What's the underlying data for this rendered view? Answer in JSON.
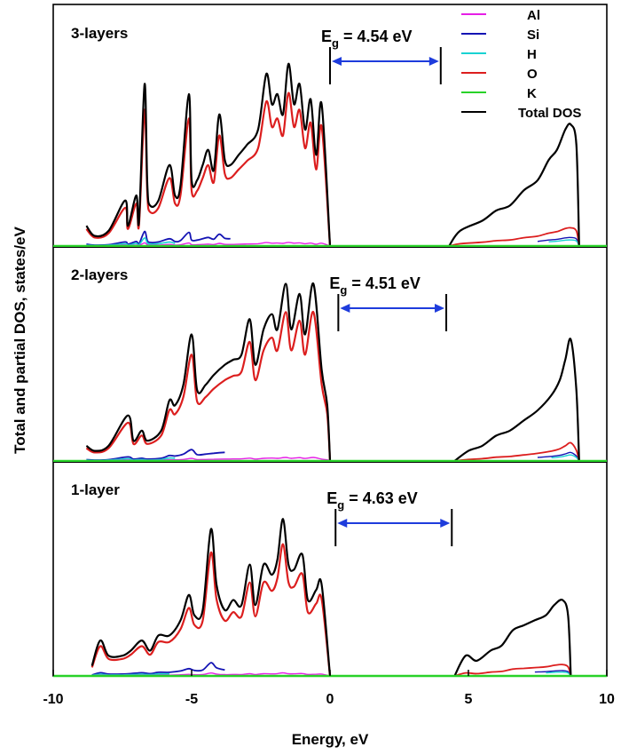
{
  "figure": {
    "ylabel": "Total and partial DOS, states/eV",
    "xlabel": "Energy, eV"
  },
  "legend": {
    "entries": [
      {
        "label": "Al",
        "color": "#e61ee6"
      },
      {
        "label": "Si",
        "color": "#1414b4"
      },
      {
        "label": "H",
        "color": "#19d2d2"
      },
      {
        "label": "O",
        "color": "#dc1e1e"
      },
      {
        "label": "K",
        "color": "#28d228"
      },
      {
        "label": "Total DOS",
        "color": "#000000"
      }
    ]
  },
  "chart_data": {
    "type": "line",
    "xlabel": "Energy, eV",
    "ylabel": "Total and partial DOS, states/eV",
    "xlim": [
      -10,
      10
    ],
    "xticks": [
      "-10",
      "-5",
      "0",
      "5",
      "10"
    ],
    "series_names": [
      "Al",
      "Si",
      "H",
      "O",
      "K",
      "Total DOS"
    ],
    "panels": [
      {
        "label": "3-layers",
        "band_gap": {
          "text_main": "E",
          "text_sub": "g",
          "text_rest": " = 4.54 eV",
          "from": 0.0,
          "to": 4.0
        },
        "valence": [
          [
            -8.8,
            0.4
          ],
          [
            -8.5,
            0.2
          ],
          [
            -8.0,
            0.3
          ],
          [
            -7.4,
            0.9
          ],
          [
            -7.3,
            0.4
          ],
          [
            -7.0,
            1.0
          ],
          [
            -6.9,
            0.5
          ],
          [
            -6.7,
            3.2
          ],
          [
            -6.6,
            1.2
          ],
          [
            -6.5,
            0.8
          ],
          [
            -6.2,
            0.9
          ],
          [
            -5.8,
            1.6
          ],
          [
            -5.6,
            1.0
          ],
          [
            -5.4,
            1.2
          ],
          [
            -5.1,
            3.0
          ],
          [
            -5.0,
            1.3
          ],
          [
            -4.8,
            1.3
          ],
          [
            -4.6,
            1.6
          ],
          [
            -4.4,
            1.9
          ],
          [
            -4.2,
            1.5
          ],
          [
            -4.0,
            2.6
          ],
          [
            -3.8,
            1.7
          ],
          [
            -3.6,
            1.6
          ],
          [
            -3.3,
            1.8
          ],
          [
            -3.0,
            2.0
          ],
          [
            -2.6,
            2.3
          ],
          [
            -2.3,
            3.4
          ],
          [
            -2.1,
            2.8
          ],
          [
            -1.9,
            3.0
          ],
          [
            -1.7,
            2.6
          ],
          [
            -1.5,
            3.6
          ],
          [
            -1.3,
            2.8
          ],
          [
            -1.1,
            3.2
          ],
          [
            -0.9,
            2.3
          ],
          [
            -0.7,
            2.9
          ],
          [
            -0.5,
            1.8
          ],
          [
            -0.3,
            2.8
          ],
          [
            0.0,
            0.0
          ]
        ],
        "conduction": [
          [
            4.3,
            0.0
          ],
          [
            4.7,
            0.3
          ],
          [
            5.5,
            0.5
          ],
          [
            6.0,
            0.7
          ],
          [
            6.5,
            0.8
          ],
          [
            7.0,
            1.1
          ],
          [
            7.5,
            1.3
          ],
          [
            7.9,
            1.7
          ],
          [
            8.2,
            1.9
          ],
          [
            8.5,
            2.3
          ],
          [
            8.7,
            2.4
          ],
          [
            8.9,
            2.0
          ],
          [
            9.0,
            0.0
          ]
        ]
      },
      {
        "label": "2-layers",
        "band_gap": {
          "text_main": "E",
          "text_sub": "g",
          "text_rest": " = 4.51 eV",
          "from": 0.3,
          "to": 4.2
        },
        "valence": [
          [
            -8.8,
            0.3
          ],
          [
            -8.5,
            0.2
          ],
          [
            -8.0,
            0.3
          ],
          [
            -7.3,
            0.9
          ],
          [
            -7.1,
            0.4
          ],
          [
            -6.8,
            0.6
          ],
          [
            -6.6,
            0.4
          ],
          [
            -6.1,
            0.6
          ],
          [
            -5.8,
            1.2
          ],
          [
            -5.6,
            1.1
          ],
          [
            -5.3,
            1.5
          ],
          [
            -5.0,
            2.5
          ],
          [
            -4.8,
            1.4
          ],
          [
            -4.5,
            1.5
          ],
          [
            -4.2,
            1.7
          ],
          [
            -3.8,
            1.9
          ],
          [
            -3.5,
            2.0
          ],
          [
            -3.2,
            2.1
          ],
          [
            -2.9,
            2.8
          ],
          [
            -2.7,
            1.9
          ],
          [
            -2.4,
            2.6
          ],
          [
            -2.1,
            2.9
          ],
          [
            -1.9,
            2.6
          ],
          [
            -1.6,
            3.5
          ],
          [
            -1.4,
            2.6
          ],
          [
            -1.1,
            3.3
          ],
          [
            -0.9,
            2.5
          ],
          [
            -0.6,
            3.5
          ],
          [
            -0.3,
            1.8
          ],
          [
            -0.1,
            1.1
          ],
          [
            0.0,
            0.0
          ]
        ],
        "conduction": [
          [
            4.5,
            0.0
          ],
          [
            5.0,
            0.2
          ],
          [
            5.5,
            0.3
          ],
          [
            6.0,
            0.5
          ],
          [
            6.5,
            0.6
          ],
          [
            7.0,
            0.8
          ],
          [
            7.5,
            1.0
          ],
          [
            8.0,
            1.3
          ],
          [
            8.3,
            1.6
          ],
          [
            8.5,
            2.0
          ],
          [
            8.7,
            2.4
          ],
          [
            8.9,
            1.4
          ],
          [
            9.0,
            0.0
          ]
        ]
      },
      {
        "label": "1-layer",
        "band_gap": {
          "text_main": "E",
          "text_sub": "g",
          "text_rest": " = 4.63 eV",
          "from": 0.2,
          "to": 4.4
        },
        "valence": [
          [
            -8.6,
            0.2
          ],
          [
            -8.3,
            0.7
          ],
          [
            -8.0,
            0.4
          ],
          [
            -7.5,
            0.4
          ],
          [
            -7.2,
            0.5
          ],
          [
            -6.8,
            0.7
          ],
          [
            -6.5,
            0.5
          ],
          [
            -6.2,
            0.8
          ],
          [
            -5.8,
            0.8
          ],
          [
            -5.4,
            1.1
          ],
          [
            -5.1,
            1.6
          ],
          [
            -4.9,
            1.2
          ],
          [
            -4.6,
            1.3
          ],
          [
            -4.3,
            2.9
          ],
          [
            -4.1,
            1.8
          ],
          [
            -3.8,
            1.3
          ],
          [
            -3.5,
            1.5
          ],
          [
            -3.2,
            1.4
          ],
          [
            -2.9,
            2.2
          ],
          [
            -2.7,
            1.4
          ],
          [
            -2.4,
            2.2
          ],
          [
            -2.1,
            2.0
          ],
          [
            -1.9,
            2.3
          ],
          [
            -1.7,
            3.1
          ],
          [
            -1.5,
            2.2
          ],
          [
            -1.3,
            2.1
          ],
          [
            -1.0,
            2.4
          ],
          [
            -0.8,
            1.5
          ],
          [
            -0.5,
            1.7
          ],
          [
            -0.3,
            1.8
          ],
          [
            0.0,
            0.0
          ]
        ],
        "conduction": [
          [
            4.5,
            0.0
          ],
          [
            4.9,
            0.4
          ],
          [
            5.3,
            0.3
          ],
          [
            5.8,
            0.5
          ],
          [
            6.2,
            0.6
          ],
          [
            6.6,
            0.9
          ],
          [
            7.0,
            1.0
          ],
          [
            7.4,
            1.1
          ],
          [
            7.8,
            1.2
          ],
          [
            8.1,
            1.4
          ],
          [
            8.4,
            1.5
          ],
          [
            8.6,
            1.2
          ],
          [
            8.7,
            0.0
          ]
        ]
      }
    ]
  }
}
